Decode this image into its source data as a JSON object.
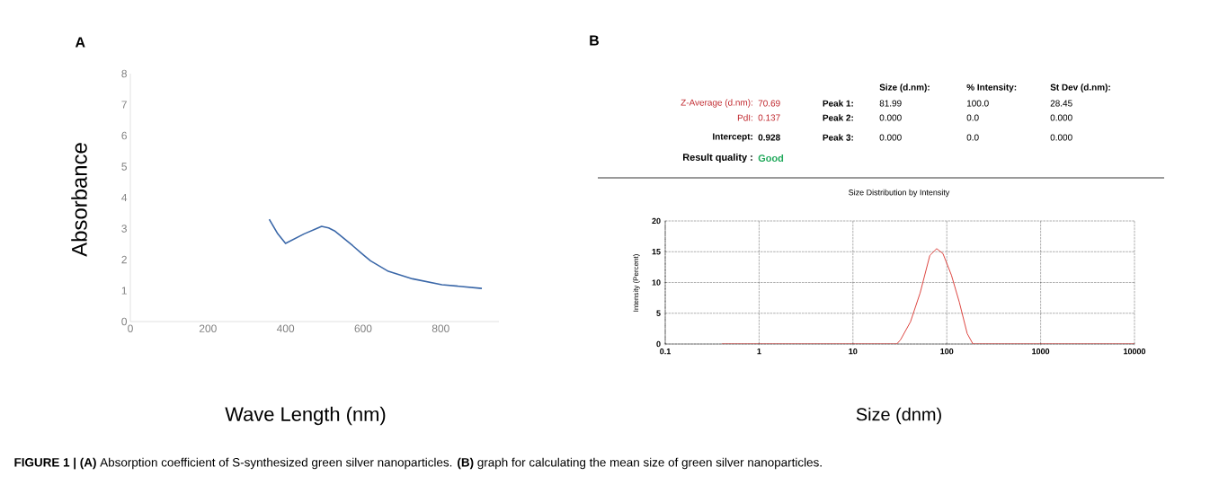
{
  "chart_data": [
    {
      "type": "line",
      "xlabel": "Wave Length (nm)",
      "ylabel": "Absorbance",
      "xlim": [
        0,
        950
      ],
      "ylim": [
        0,
        8
      ],
      "xticks": [
        0,
        200,
        400,
        600,
        800
      ],
      "yticks": [
        0,
        1,
        2,
        3,
        4,
        5,
        6,
        7,
        8
      ],
      "grid": false,
      "marker": "none",
      "series": [
        {
          "color": "#3a67a8",
          "x": [
            358,
            380,
            400,
            448,
            493,
            511,
            526,
            573,
            596,
            619,
            665,
            727,
            803,
            906
          ],
          "values": [
            3.3,
            2.83,
            2.52,
            2.83,
            3.07,
            3.02,
            2.93,
            2.45,
            2.2,
            1.96,
            1.62,
            1.38,
            1.19,
            1.07
          ]
        }
      ],
      "annotations": [
        "A",
        "**FIGURE 1 | (A)** Absorption coefficient of S-synthesized green silver nanoparticles. **(B)** graph for calculating the mean size of green silver nanoparticles."
      ]
    },
    {
      "type": "other",
      "annotations": [
        "B",
        "Z-Average (d.nm):",
        "70.69",
        "PdI:",
        "0.137",
        "Intercept:",
        "0.928",
        "Result quality :",
        "Good",
        "Size (d.nm):",
        "% Intensity:",
        "St Dev (d.nm):",
        "Peak 1:",
        "81.99",
        "100.0",
        "28.45",
        "Peak 2:",
        "0.000",
        "0.0",
        "0.000",
        "Peak 3:",
        "0.000",
        "0.0",
        "0.000"
      ]
    },
    {
      "type": "line",
      "title": "Size Distribution by Intensity",
      "xlabel": "Size (dnm)",
      "ylabel": "Intensity (Percent)",
      "log": "x",
      "xlim": [
        0.1,
        10000
      ],
      "ylim": [
        0,
        20
      ],
      "xticks": [
        0.1,
        1,
        10,
        100,
        1000,
        10000
      ],
      "yticks": [
        0,
        5,
        10,
        15,
        20
      ],
      "grid": true,
      "marker": "none",
      "series": [
        {
          "color": "#d9302a",
          "x": [
            0.4,
            1,
            10,
            29.3,
            32.2,
            41,
            52,
            66,
            78,
            91,
            112,
            136,
            165,
            190,
            1000,
            10000
          ],
          "values": [
            0,
            0,
            0,
            0,
            0.7,
            3.6,
            8.3,
            14.4,
            15.5,
            14.7,
            11.2,
            6.8,
            1.7,
            0,
            0,
            0
          ]
        }
      ]
    }
  ]
}
